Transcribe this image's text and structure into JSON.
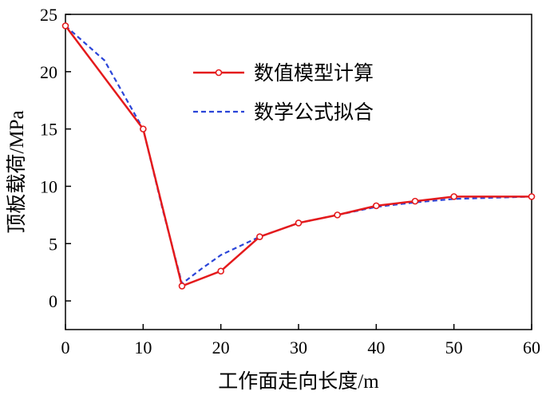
{
  "chart_data": {
    "type": "line",
    "xlabel": "工作面走向长度/m",
    "ylabel": "顶板载荷/MPa",
    "xlim": [
      0,
      60
    ],
    "ylim": [
      -2.5,
      25
    ],
    "x_ticks": [
      "0",
      "10",
      "20",
      "30",
      "40",
      "50",
      "60"
    ],
    "y_ticks": [
      "0",
      "5",
      "10",
      "15",
      "20",
      "25"
    ],
    "x_tick_values": [
      0,
      10,
      20,
      30,
      40,
      50,
      60
    ],
    "y_tick_values": [
      0,
      5,
      10,
      15,
      20,
      25
    ],
    "grid": false,
    "legend_position": "top-center",
    "series": [
      {
        "name": "数值模型计算",
        "style": "solid-with-circle-markers",
        "color": "#e41a1c",
        "x": [
          0,
          10,
          15,
          20,
          25,
          30,
          35,
          40,
          45,
          50,
          60
        ],
        "y": [
          24.0,
          15.0,
          1.3,
          2.6,
          5.6,
          6.8,
          7.5,
          8.3,
          8.7,
          9.1,
          9.1
        ]
      },
      {
        "name": "数学公式拟合",
        "style": "dashed",
        "color": "#2b45d8",
        "x": [
          0,
          5,
          10,
          12.5,
          15,
          17.5,
          20,
          25,
          30,
          35,
          40,
          45,
          50,
          55,
          60
        ],
        "y": [
          24.0,
          21.0,
          15.0,
          8.0,
          1.5,
          2.8,
          4.0,
          5.6,
          6.8,
          7.5,
          8.2,
          8.6,
          8.9,
          9.0,
          9.1
        ]
      }
    ]
  }
}
